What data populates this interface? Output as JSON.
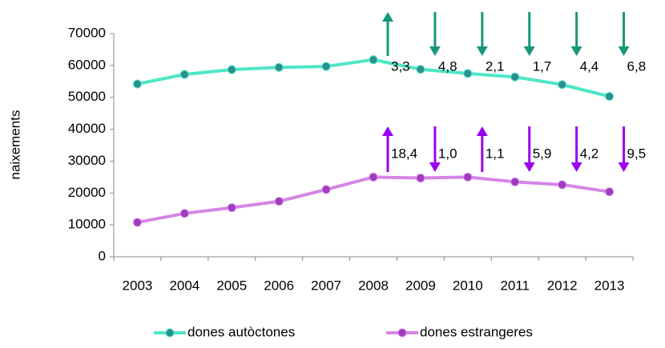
{
  "chart_data": {
    "type": "line",
    "categories": [
      "2003",
      "2004",
      "2005",
      "2006",
      "2007",
      "2008",
      "2009",
      "2010",
      "2011",
      "2012",
      "2013"
    ],
    "series": [
      {
        "name": "dones autòctones",
        "color": "#4ee6c6",
        "marker_color": "#2b8f8f",
        "arrow_color": "#17977a",
        "values": [
          54200,
          57200,
          58700,
          59400,
          59700,
          61800,
          58800,
          57500,
          56400,
          54000,
          50300
        ],
        "change_labels": [
          null,
          null,
          null,
          null,
          null,
          "3,3",
          "4,8",
          "2,1",
          "1,7",
          "4,4",
          "6,8"
        ],
        "change_directions": [
          null,
          null,
          null,
          null,
          null,
          "up",
          "down",
          "down",
          "down",
          "down",
          "down"
        ]
      },
      {
        "name": "dones estrangeres",
        "color": "#d585e6",
        "marker_color": "#a03cc0",
        "arrow_color": "#9a00f0",
        "values": [
          10800,
          13600,
          15400,
          17400,
          21100,
          25000,
          24700,
          25000,
          23500,
          22600,
          20400
        ],
        "change_labels": [
          null,
          null,
          null,
          null,
          null,
          "18,4",
          "1,0",
          "1,1",
          "5,9",
          "4,2",
          "9,5"
        ],
        "change_directions": [
          null,
          null,
          null,
          null,
          null,
          "up",
          "down",
          "up",
          "down",
          "down",
          "down"
        ]
      }
    ],
    "y_label": "naixements",
    "ylim": [
      0,
      70000
    ],
    "yticks": [
      0,
      10000,
      20000,
      30000,
      40000,
      50000,
      60000,
      70000
    ],
    "grid": false,
    "legend": "bottom"
  }
}
